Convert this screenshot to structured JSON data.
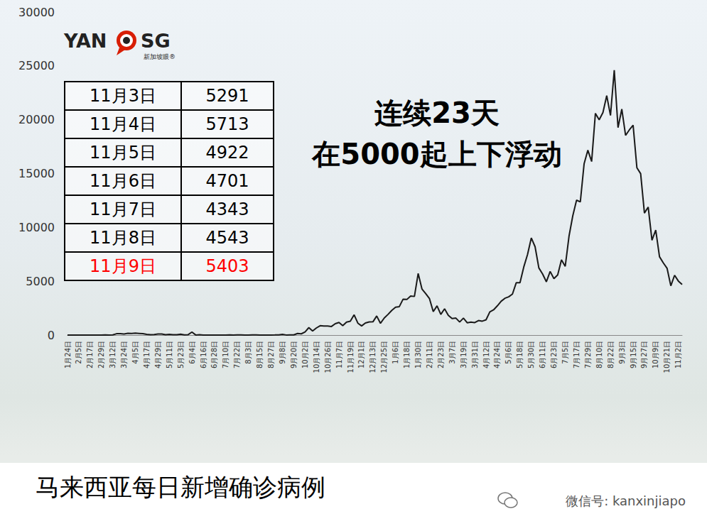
{
  "chart_data": {
    "type": "line",
    "title": "马来西亚每日新增确诊病例",
    "categories": [
      "1月24日",
      null,
      null,
      "2月5日",
      null,
      null,
      "2月17日",
      null,
      null,
      "2月29日",
      null,
      null,
      "3月12日",
      null,
      null,
      "3月24日",
      null,
      null,
      "4月5日",
      null,
      null,
      "4月17日",
      null,
      null,
      "4月29日",
      null,
      null,
      "5月11日",
      null,
      null,
      "5月23日",
      null,
      null,
      "6月4日",
      null,
      null,
      "6月16日",
      null,
      null,
      "6月28日",
      null,
      null,
      "7月10日",
      null,
      null,
      "7月22日",
      null,
      null,
      "8月3日",
      null,
      null,
      "8月15日",
      null,
      null,
      "8月27日",
      null,
      null,
      "9月8日",
      null,
      null,
      "9月20日",
      null,
      null,
      "10月2日",
      null,
      null,
      "10月14日",
      null,
      null,
      "10月26日",
      null,
      null,
      "11月7日",
      null,
      null,
      "11月19日",
      null,
      null,
      "12月1日",
      null,
      null,
      "12月13日",
      null,
      null,
      "12月25日",
      null,
      null,
      "1月6日",
      null,
      null,
      "1月18日",
      null,
      null,
      "1月30日",
      null,
      null,
      "2月11日",
      null,
      null,
      "2月23日",
      null,
      null,
      "3月7日",
      null,
      null,
      "3月19日",
      null,
      null,
      "3月31日",
      null,
      null,
      "4月12日",
      null,
      null,
      "4月24日",
      null,
      null,
      "5月6日",
      null,
      null,
      "5月18日",
      null,
      null,
      "5月30日",
      null,
      null,
      "6月11日",
      null,
      null,
      "6月23日",
      null,
      null,
      "7月5日",
      null,
      null,
      "7月17日",
      null,
      null,
      "7月29日",
      null,
      null,
      "8月10日",
      null,
      null,
      "8月22日",
      null,
      null,
      "9月3日",
      null,
      null,
      "9月15日",
      null,
      null,
      "9月27日",
      null,
      null,
      "10月9日",
      null,
      null,
      "10月21日",
      null,
      null,
      "11月2日",
      null
    ],
    "values": [
      0,
      0,
      0,
      2,
      1,
      0,
      0,
      0,
      0,
      1,
      14,
      6,
      20,
      125,
      130,
      106,
      159,
      142,
      179,
      156,
      134,
      69,
      36,
      51,
      94,
      105,
      39,
      67,
      40,
      37,
      78,
      15,
      38,
      277,
      7,
      31,
      8,
      6,
      2,
      6,
      4,
      3,
      5,
      11,
      5,
      15,
      23,
      5,
      4,
      10,
      12,
      4,
      3,
      4,
      5,
      9,
      18,
      62,
      8,
      15,
      20,
      147,
      115,
      287,
      691,
      374,
      660,
      871,
      847,
      835,
      799,
      1054,
      1168,
      869,
      1208,
      1290,
      1884,
      1109,
      851,
      1123,
      1220,
      1229,
      1772,
      1093,
      1581,
      1921,
      2295,
      2593,
      2643,
      3337,
      3306,
      3631,
      3585,
      5728,
      4284,
      3847,
      3384,
      2176,
      2712,
      1924,
      2437,
      1828,
      1529,
      1575,
      1208,
      1575,
      1144,
      1199,
      1154,
      1349,
      1291,
      1417,
      2148,
      2341,
      2717,
      3142,
      3418,
      3551,
      3807,
      4855,
      4865,
      6320,
      7478,
      9020,
      8209,
      6239,
      5671,
      4949,
      5911,
      5244,
      5586,
      6988,
      6387,
      9180,
      11079,
      12528,
      12366,
      15902,
      17170,
      16117,
      20596,
      19991,
      20670,
      22242,
      20399,
      24599,
      19268,
      20988,
      18547,
      19057,
      19495,
      15549,
      14990,
      11332,
      11889,
      8817,
      9751,
      7276,
      6709,
      6210,
      4573,
      5555,
      5017,
      4701
    ],
    "color": "#1a1a1a",
    "ylim": [
      0,
      30000
    ],
    "yticks": [
      0,
      5000,
      10000,
      15000,
      20000,
      25000,
      30000
    ],
    "grid": false,
    "annotations": [
      "连续23天",
      "在5000起上下浮动"
    ]
  },
  "table": {
    "rows": [
      {
        "date": "11月3日",
        "value": 5291,
        "color": "#000000"
      },
      {
        "date": "11月4日",
        "value": 5713,
        "color": "#000000"
      },
      {
        "date": "11月5日",
        "value": 4922,
        "color": "#000000"
      },
      {
        "date": "11月6日",
        "value": 4701,
        "color": "#000000"
      },
      {
        "date": "11月7日",
        "value": 4343,
        "color": "#000000"
      },
      {
        "date": "11月8日",
        "value": 4543,
        "color": "#000000"
      },
      {
        "date": "11月9日",
        "value": 5403,
        "color": "#ff0000"
      }
    ]
  },
  "logo": {
    "left": "YAN",
    "right": "SG",
    "sub": "新加坡眼®"
  },
  "watermark": "微信号: kanxinjiapo"
}
